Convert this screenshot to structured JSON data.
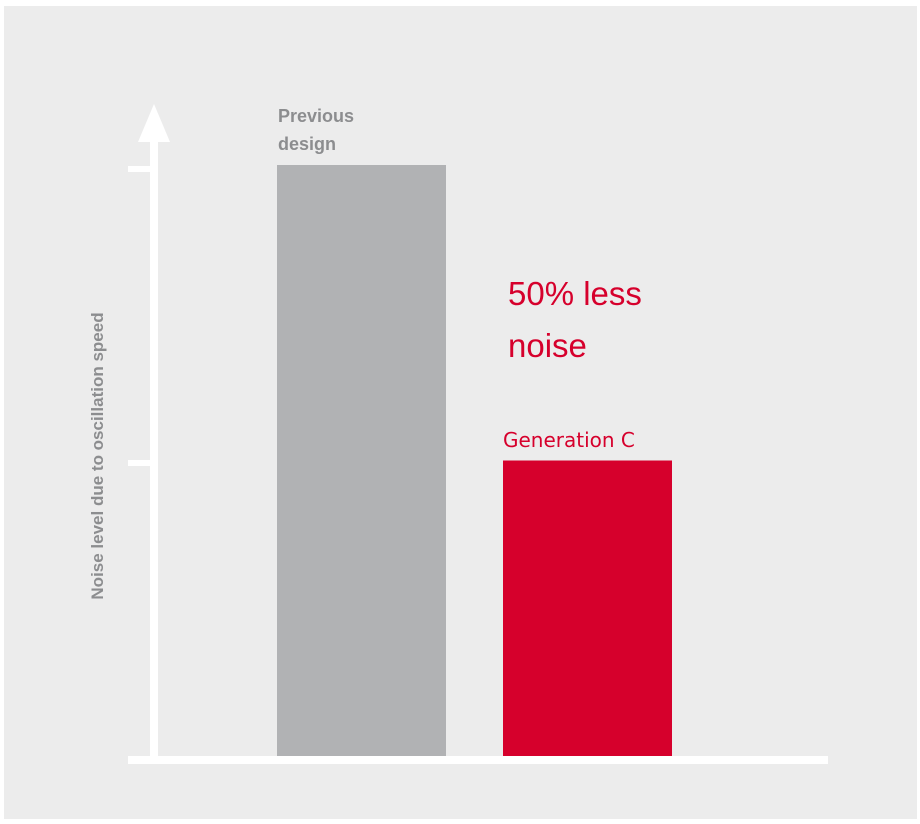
{
  "chart_data": {
    "type": "bar",
    "ylabel": "Noise level due to oscillation speed",
    "xlabel": "",
    "categories": [
      "Previous design",
      "Generation C"
    ],
    "values": [
      100,
      50
    ],
    "ylim": [
      0,
      100
    ],
    "colors": [
      "#b1b2b4",
      "#d6002c"
    ],
    "annotation_lines": [
      "50% less",
      "noise"
    ],
    "axis_color": "#ffffff",
    "background": "#ececec",
    "grid": false,
    "legend": "none"
  }
}
